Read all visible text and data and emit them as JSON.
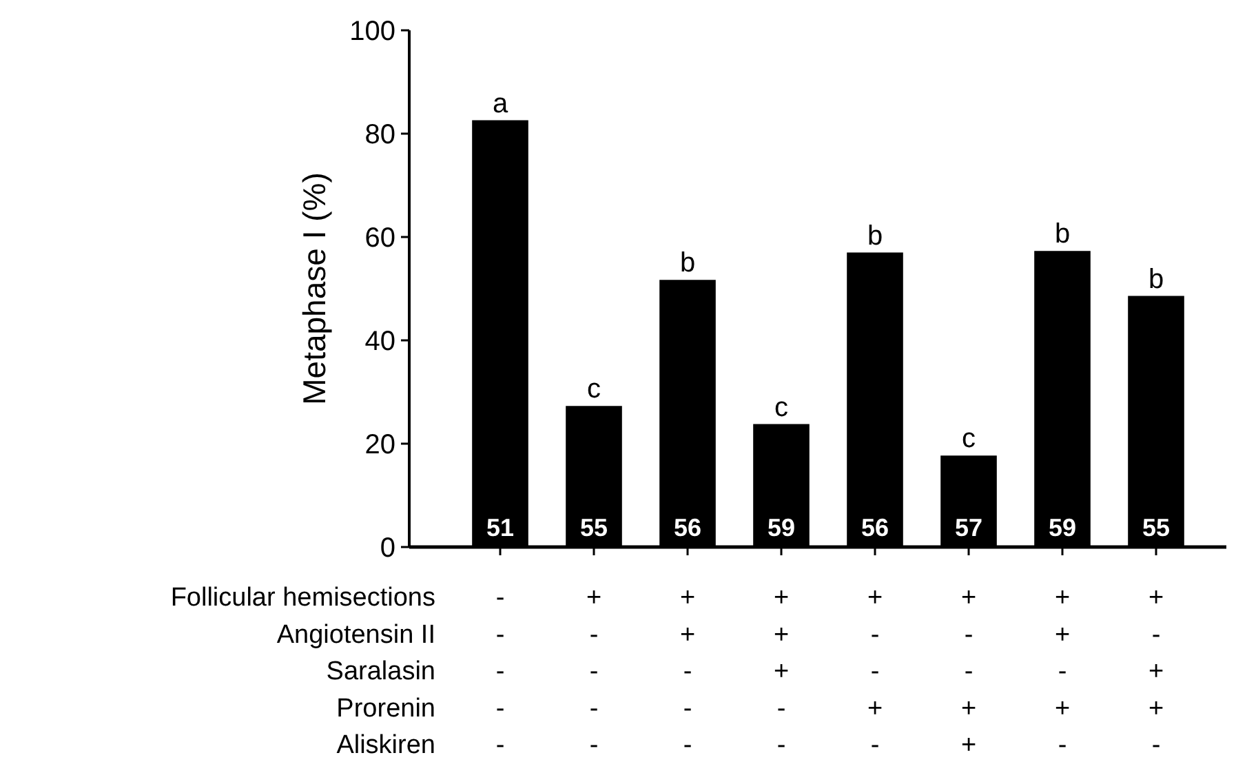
{
  "chart_data": {
    "type": "bar",
    "ylabel": "Metaphase I (%)",
    "categories": [
      "-\n-\n-\n-\n-",
      "+\n-\n-\n-\n-",
      "+\n+\n-\n-\n-",
      "+\n+\n+\n-\n-",
      "+\n-\n-\n+\n-",
      "+\n-\n-\n+\n+",
      "+\n+\n-\n+\n-",
      "+\n-\n+\n+\n-"
    ],
    "values": [
      82.6,
      27.3,
      51.7,
      23.8,
      57,
      17.7,
      57.3,
      48.6
    ],
    "color": "#000000",
    "ylim": [
      0,
      100
    ],
    "yticks": [
      0,
      20,
      40,
      60,
      80,
      100
    ],
    "grid": false,
    "annotations": [
      "Follicular hemisections",
      "Angiotensin II",
      "Saralasin",
      "Prorenin",
      "Aliskiren",
      "a",
      "c",
      "b",
      "c",
      "b",
      "c",
      "b",
      "b",
      "51",
      "55",
      "56",
      "59",
      "56",
      "57",
      "59",
      "55"
    ]
  }
}
